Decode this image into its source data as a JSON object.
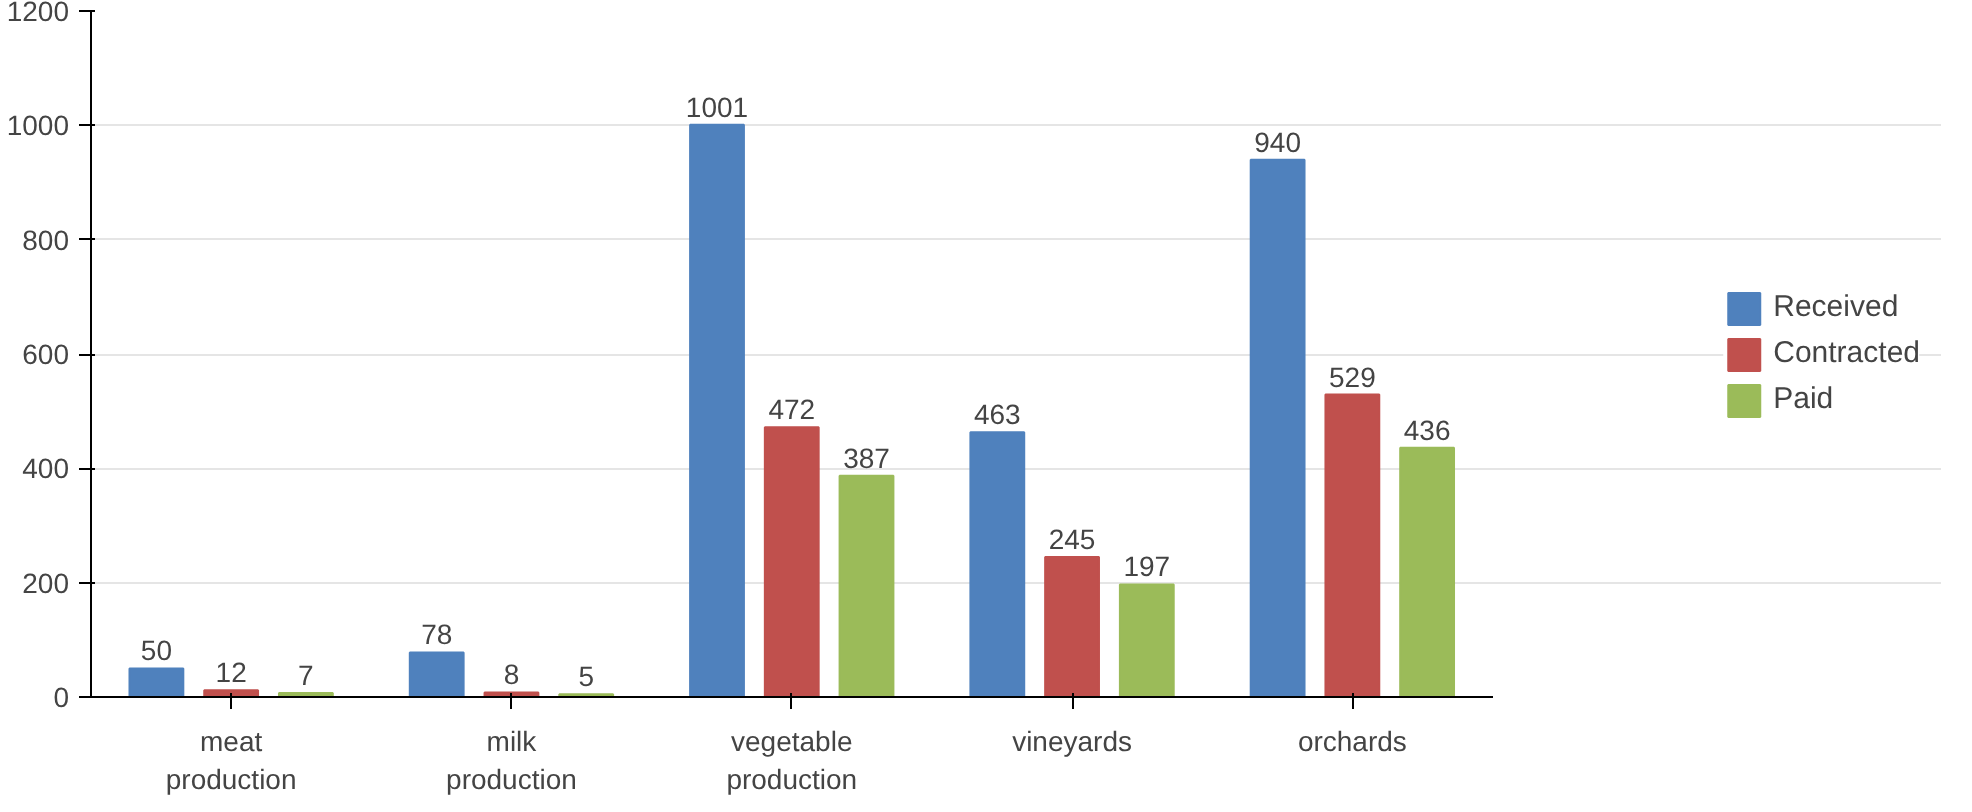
{
  "chart_data": {
    "type": "bar",
    "categories": [
      "meat production",
      "milk production",
      "vegetable production",
      "vineyards",
      "orchards"
    ],
    "series": [
      {
        "name": "Received",
        "color": "#4f81bd",
        "values": [
          50,
          78,
          1001,
          463,
          940
        ]
      },
      {
        "name": "Contracted",
        "color": "#c0504d",
        "values": [
          12,
          8,
          472,
          245,
          529
        ]
      },
      {
        "name": "Paid",
        "color": "#9bbb59",
        "values": [
          7,
          5,
          387,
          197,
          436
        ]
      }
    ],
    "ylim": [
      0,
      1200
    ],
    "yticks": [
      0,
      200,
      400,
      600,
      800,
      1000,
      1200
    ],
    "grid": "y",
    "legend": "right",
    "data_labels": true
  }
}
